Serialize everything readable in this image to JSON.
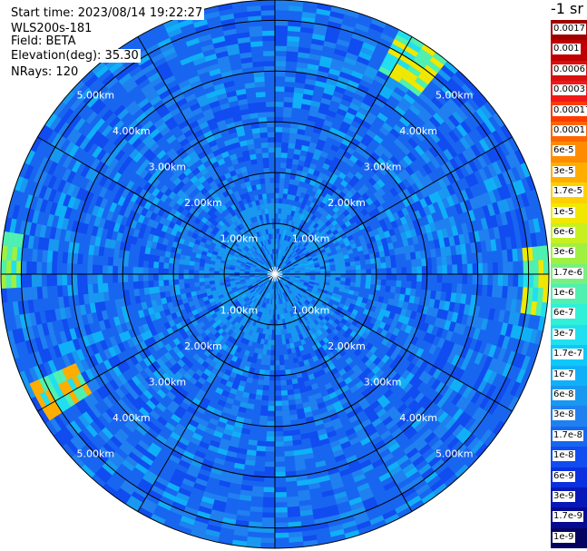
{
  "info": {
    "start_time": "Start time: 2023/08/14 19:22:27",
    "instrument": "WLS200s-181",
    "field": "Field: BETA",
    "elevation": "Elevation(deg): 35.30",
    "nrays": "NRays: 120"
  },
  "colorbar": {
    "unit_label": "-1 sr",
    "entries": [
      {
        "label": "0.0017",
        "color": "#a00000"
      },
      {
        "label": "0.001",
        "color": "#c00000"
      },
      {
        "label": "0.0006",
        "color": "#d81010"
      },
      {
        "label": "0.0003",
        "color": "#f01818"
      },
      {
        "label": "0.00017",
        "color": "#ff3a00"
      },
      {
        "label": "0.0001",
        "color": "#ff6400"
      },
      {
        "label": "6e-5",
        "color": "#ff8c00"
      },
      {
        "label": "3e-5",
        "color": "#ffae00"
      },
      {
        "label": "1.7e-5",
        "color": "#ffd000"
      },
      {
        "label": "1e-5",
        "color": "#f0e800"
      },
      {
        "label": "6e-6",
        "color": "#c8f020"
      },
      {
        "label": "3e-6",
        "color": "#a0f040"
      },
      {
        "label": "1.7e-6",
        "color": "#78f080"
      },
      {
        "label": "1e-6",
        "color": "#50f0b0"
      },
      {
        "label": "6e-7",
        "color": "#30f0d8"
      },
      {
        "label": "3e-7",
        "color": "#20e0f0"
      },
      {
        "label": "1.7e-7",
        "color": "#10c8f8"
      },
      {
        "label": "1e-7",
        "color": "#10b0f8"
      },
      {
        "label": "6e-8",
        "color": "#1898f0"
      },
      {
        "label": "3e-8",
        "color": "#2080f0"
      },
      {
        "label": "1.7e-8",
        "color": "#1866f0"
      },
      {
        "label": "1e-8",
        "color": "#104cf0"
      },
      {
        "label": "6e-9",
        "color": "#0a30e0"
      },
      {
        "label": "3e-9",
        "color": "#0818b8"
      },
      {
        "label": "1.7e-9",
        "color": "#060a90"
      },
      {
        "label": "1e-9",
        "color": "#040460"
      }
    ]
  },
  "chart_data": {
    "type": "heatmap",
    "projection": "polar-ppi",
    "rays": 120,
    "elevation_deg": 35.3,
    "field": "BETA",
    "range_rings_km": [
      1,
      2,
      3,
      4,
      5
    ],
    "range_ring_labels": [
      "1.00km",
      "2.00km",
      "3.00km",
      "4.00km",
      "5.00km"
    ],
    "max_range_km": 5.4,
    "spokes_deg": [
      0,
      30,
      60,
      90,
      120,
      150,
      180,
      210,
      240,
      270,
      300,
      330
    ],
    "dominant_value": "1.7e-8",
    "near_center_value": "6e-8",
    "high_echo_sectors": [
      {
        "azimuth_deg": [
          28,
          38
        ],
        "range_km": [
          4.5,
          5.4
        ],
        "value": "1e-5"
      },
      {
        "azimuth_deg": [
          83,
          100
        ],
        "range_km": [
          4.9,
          5.4
        ],
        "value": "1e-5"
      },
      {
        "azimuth_deg": [
          236,
          246
        ],
        "range_km": [
          4.3,
          5.3
        ],
        "value": "3e-5"
      },
      {
        "azimuth_deg": [
          266,
          278
        ],
        "range_km": [
          5.0,
          5.4
        ],
        "value": "3e-6"
      }
    ]
  }
}
